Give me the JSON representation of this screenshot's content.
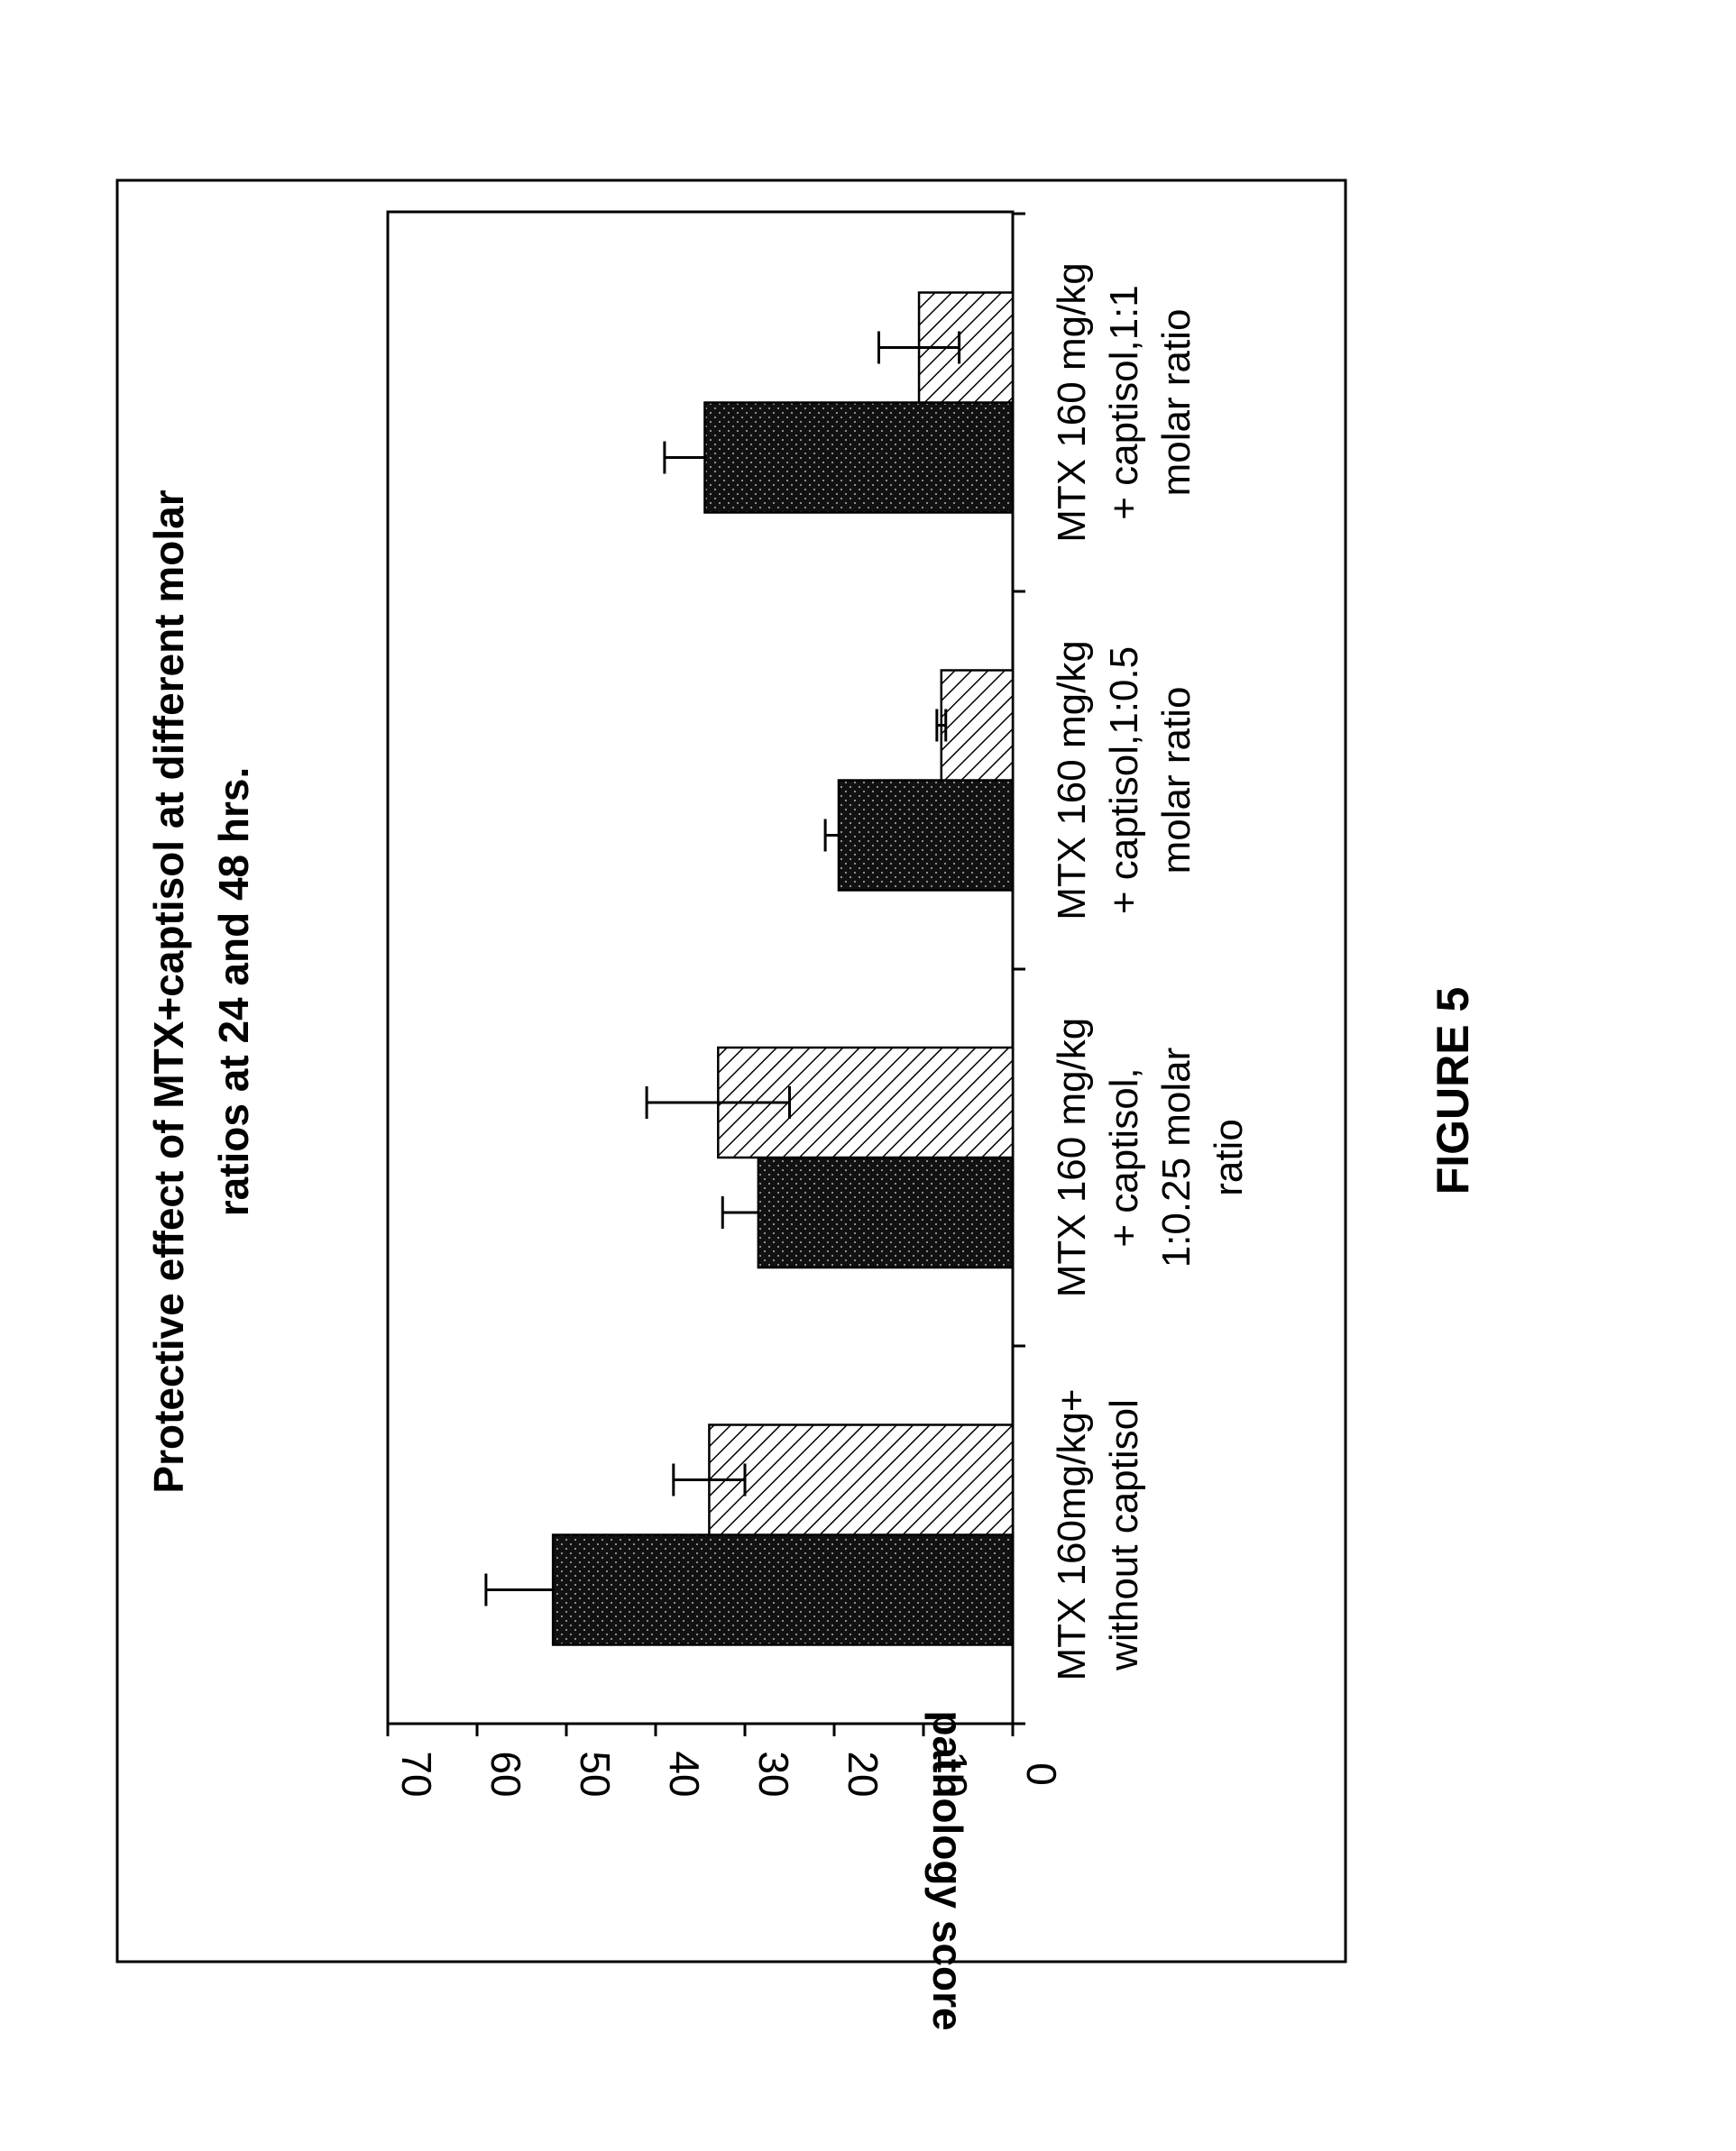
{
  "chart_data": {
    "type": "bar",
    "title_lines": [
      "Protective effect of MTX+captisol at different molar",
      "ratios at 24 and 48 hrs."
    ],
    "ylabel": "pathology score",
    "ylim": [
      0,
      70
    ],
    "yticks": [
      "0",
      "10",
      "20",
      "30",
      "40",
      "50",
      "60",
      "70"
    ],
    "categories": [
      {
        "lines": [
          "MTX 160mg/kg+",
          "without captisol"
        ]
      },
      {
        "lines": [
          "MTX 160 mg/kg",
          "+ captisol,",
          "1:0.25 molar",
          "ratio"
        ]
      },
      {
        "lines": [
          "MTX 160 mg/kg",
          "+ captisol,1:0.5",
          "molar ratio"
        ]
      },
      {
        "lines": [
          "MTX 160 mg/kg",
          "+ captisol,1:1",
          "molar ratio"
        ]
      }
    ],
    "series": [
      {
        "pattern": "dotted-dark",
        "values": [
          51.5,
          28.5,
          19.5,
          34.5
        ],
        "errors": [
          7.5,
          4,
          1.5,
          4.5
        ]
      },
      {
        "pattern": "hatched",
        "values": [
          34,
          33,
          8,
          10.5
        ],
        "errors": [
          4,
          8,
          0.5,
          4.5
        ]
      }
    ],
    "grid": false,
    "legend": "none",
    "colors": {
      "dark_fill": "#111111",
      "light_fill": "#ffffff",
      "ink": "#000000"
    }
  },
  "figure_label": "FIGURE 5"
}
